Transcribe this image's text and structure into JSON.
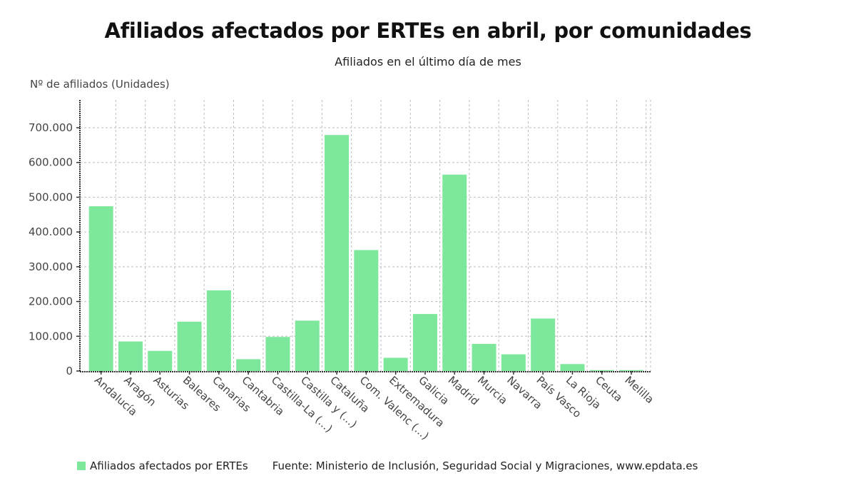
{
  "colors": {
    "bar": "#7de89b",
    "grid": "#bdbdbd",
    "axis": "#333333",
    "tick_text": "#444444"
  },
  "chart_data": {
    "type": "bar",
    "title": "Afiliados afectados por ERTEs en abril, por comunidades",
    "subtitle": "Afiliados en el último día de mes",
    "ylabel": "Nº de afiliados (Unidades)",
    "xlabel": "",
    "ylim": [
      0,
      780000
    ],
    "yticks": [
      0,
      100000,
      200000,
      300000,
      400000,
      500000,
      600000,
      700000
    ],
    "ytick_labels": [
      "0",
      "100.000",
      "200.000",
      "300.000",
      "400.000",
      "500.000",
      "600.000",
      "700.000"
    ],
    "grid": true,
    "legend_position": "bottom-left",
    "categories": [
      "Andalucía",
      "Aragón",
      "Asturias",
      "Baleares",
      "Canarias",
      "Cantabria",
      "Castilla-La (...)",
      "Castilla y (...)",
      "Cataluña",
      "Com. Valenc (...)",
      "Extremadura",
      "Galicia",
      "Madrid",
      "Murcia",
      "Navarra",
      "País Vasco",
      "La Rioja",
      "Ceuta",
      "Melilla"
    ],
    "series": [
      {
        "name": "Afiliados afectados por ERTEs",
        "values": [
          474000,
          85000,
          58000,
          142000,
          232000,
          34000,
          98000,
          145000,
          679000,
          348000,
          38000,
          164000,
          565000,
          78000,
          48000,
          151000,
          20000,
          2500,
          2500
        ]
      }
    ]
  },
  "footer": {
    "legend_label": "Afiliados afectados por ERTEs",
    "source": "Fuente: Ministerio de Inclusión, Seguridad Social y Migraciones, www.epdata.es"
  }
}
